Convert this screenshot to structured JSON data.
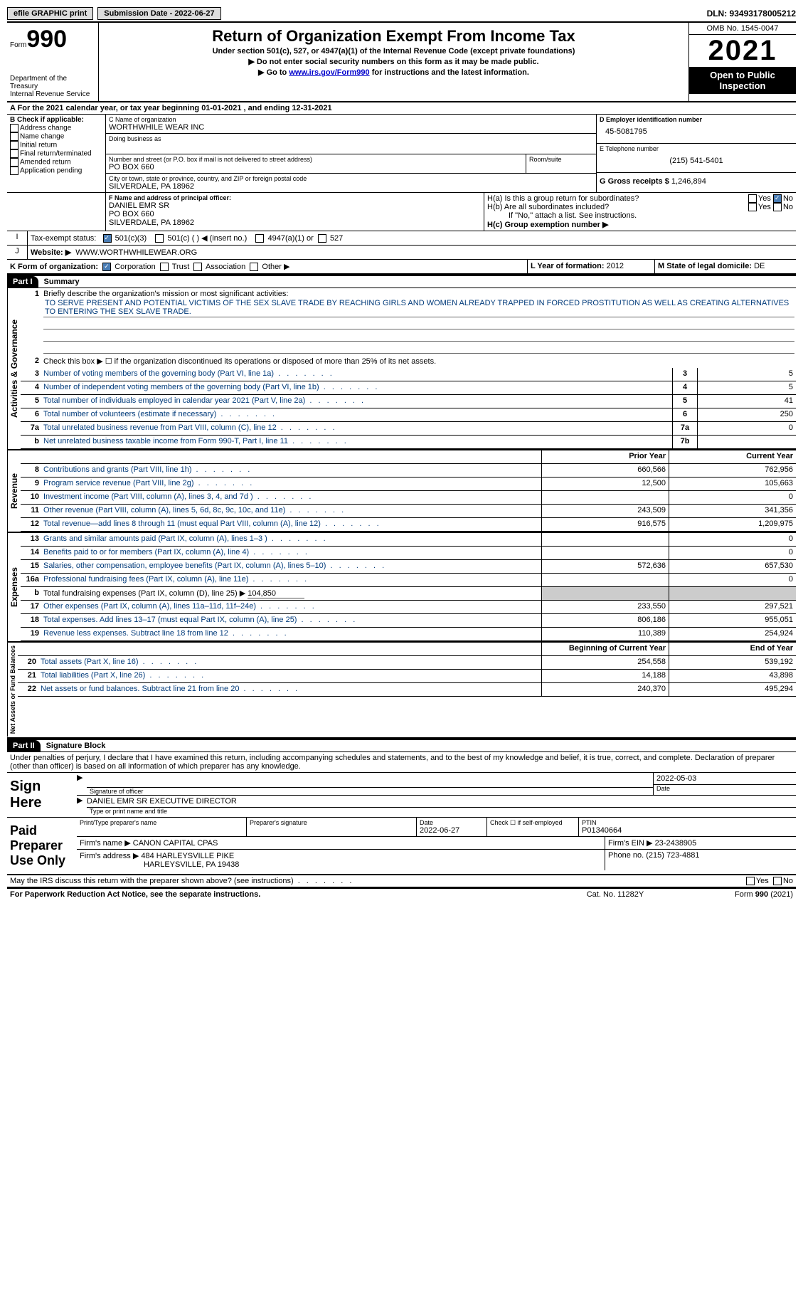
{
  "topbar": {
    "efile_label": "efile GRAPHIC print",
    "submission_label": "Submission Date - 2022-06-27",
    "dln_label": "DLN: 93493178005212"
  },
  "header": {
    "form_label": "Form",
    "form_number": "990",
    "dept": "Department of the Treasury",
    "irs": "Internal Revenue Service",
    "title": "Return of Organization Exempt From Income Tax",
    "subtitle": "Under section 501(c), 527, or 4947(a)(1) of the Internal Revenue Code (except private foundations)",
    "line1": "▶ Do not enter social security numbers on this form as it may be made public.",
    "line2_pre": "▶ Go to ",
    "line2_link": "www.irs.gov/Form990",
    "line2_post": " for instructions and the latest information.",
    "omb": "OMB No. 1545-0047",
    "year": "2021",
    "open": "Open to Public Inspection"
  },
  "a_line": "A For the 2021 calendar year, or tax year beginning 01-01-2021   , and ending 12-31-2021",
  "box_b": {
    "label": "B Check if applicable:",
    "items": [
      "Address change",
      "Name change",
      "Initial return",
      "Final return/terminated",
      "Amended return",
      "Application pending"
    ]
  },
  "box_c": {
    "name_label": "C Name of organization",
    "name": "WORTHWHILE WEAR INC",
    "dba_label": "Doing business as",
    "street_label": "Number and street (or P.O. box if mail is not delivered to street address)",
    "room_label": "Room/suite",
    "street": "PO BOX 660",
    "city_label": "City or town, state or province, country, and ZIP or foreign postal code",
    "city": "SILVERDALE, PA  18962"
  },
  "box_d": {
    "ein_label": "D Employer identification number",
    "ein": "45-5081795",
    "phone_label": "E Telephone number",
    "phone": "(215) 541-5401",
    "gross_label": "G Gross receipts $",
    "gross": "1,246,894"
  },
  "box_f": {
    "label": "F Name and address of principal officer:",
    "name": "DANIEL EMR SR",
    "street": "PO BOX 660",
    "city": "SILVERDALE, PA  18962"
  },
  "box_h": {
    "ha_label": "H(a)  Is this a group return for subordinates?",
    "hb_label": "H(b)  Are all subordinates included?",
    "h_note": "If \"No,\" attach a list. See instructions.",
    "hc_label": "H(c)  Group exemption number ▶",
    "yes": "Yes",
    "no": "No"
  },
  "line_i": {
    "label": "Tax-exempt status:",
    "opts": [
      "501(c)(3)",
      "501(c) (  ) ◀ (insert no.)",
      "4947(a)(1) or",
      "527"
    ]
  },
  "line_j": {
    "label": "Website: ▶",
    "value": "WWW.WORTHWHILEWEAR.ORG"
  },
  "line_k": {
    "label": "K Form of organization:",
    "opts": [
      "Corporation",
      "Trust",
      "Association",
      "Other ▶"
    ]
  },
  "line_l": {
    "label": "L Year of formation:",
    "value": "2012"
  },
  "line_m": {
    "label": "M State of legal domicile:",
    "value": "DE"
  },
  "parts": {
    "p1": "Part I",
    "p1_title": "Summary",
    "p2": "Part II",
    "p2_title": "Signature Block"
  },
  "sections": {
    "act": "Activities & Governance",
    "rev": "Revenue",
    "exp": "Expenses",
    "net": "Net Assets or Fund Balances"
  },
  "summary": {
    "l1_label": "Briefly describe the organization's mission or most significant activities:",
    "l1_text": "TO SERVE PRESENT AND POTENTIAL VICTIMS OF THE SEX SLAVE TRADE BY REACHING GIRLS AND WOMEN ALREADY TRAPPED IN FORCED PROSTITUTION AS WELL AS CREATING ALTERNATIVES TO ENTERING THE SEX SLAVE TRADE.",
    "l2": "Check this box ▶ ☐ if the organization discontinued its operations or disposed of more than 25% of its net assets.",
    "lines_single": [
      {
        "n": "3",
        "t": "Number of voting members of the governing body (Part VI, line 1a)",
        "box": "3",
        "v": "5"
      },
      {
        "n": "4",
        "t": "Number of independent voting members of the governing body (Part VI, line 1b)",
        "box": "4",
        "v": "5"
      },
      {
        "n": "5",
        "t": "Total number of individuals employed in calendar year 2021 (Part V, line 2a)",
        "box": "5",
        "v": "41"
      },
      {
        "n": "6",
        "t": "Total number of volunteers (estimate if necessary)",
        "box": "6",
        "v": "250"
      },
      {
        "n": "7a",
        "t": "Total unrelated business revenue from Part VIII, column (C), line 12",
        "box": "7a",
        "v": "0"
      },
      {
        "n": "b",
        "t": "Net unrelated business taxable income from Form 990-T, Part I, line 11",
        "box": "7b",
        "v": ""
      }
    ],
    "col_prior": "Prior Year",
    "col_current": "Current Year",
    "rev_lines": [
      {
        "n": "8",
        "t": "Contributions and grants (Part VIII, line 1h)",
        "pv": "660,566",
        "cv": "762,956"
      },
      {
        "n": "9",
        "t": "Program service revenue (Part VIII, line 2g)",
        "pv": "12,500",
        "cv": "105,663"
      },
      {
        "n": "10",
        "t": "Investment income (Part VIII, column (A), lines 3, 4, and 7d )",
        "pv": "",
        "cv": "0"
      },
      {
        "n": "11",
        "t": "Other revenue (Part VIII, column (A), lines 5, 6d, 8c, 9c, 10c, and 11e)",
        "pv": "243,509",
        "cv": "341,356"
      },
      {
        "n": "12",
        "t": "Total revenue—add lines 8 through 11 (must equal Part VIII, column (A), line 12)",
        "pv": "916,575",
        "cv": "1,209,975"
      }
    ],
    "exp_lines": [
      {
        "n": "13",
        "t": "Grants and similar amounts paid (Part IX, column (A), lines 1–3 )",
        "pv": "",
        "cv": "0"
      },
      {
        "n": "14",
        "t": "Benefits paid to or for members (Part IX, column (A), line 4)",
        "pv": "",
        "cv": "0"
      },
      {
        "n": "15",
        "t": "Salaries, other compensation, employee benefits (Part IX, column (A), lines 5–10)",
        "pv": "572,636",
        "cv": "657,530"
      },
      {
        "n": "16a",
        "t": "Professional fundraising fees (Part IX, column (A), line 11e)",
        "pv": "",
        "cv": "0"
      }
    ],
    "l16b_pre": "Total fundraising expenses (Part IX, column (D), line 25) ▶",
    "l16b_val": "104,850",
    "exp_lines2": [
      {
        "n": "17",
        "t": "Other expenses (Part IX, column (A), lines 11a–11d, 11f–24e)",
        "pv": "233,550",
        "cv": "297,521"
      },
      {
        "n": "18",
        "t": "Total expenses. Add lines 13–17 (must equal Part IX, column (A), line 25)",
        "pv": "806,186",
        "cv": "955,051"
      },
      {
        "n": "19",
        "t": "Revenue less expenses. Subtract line 18 from line 12",
        "pv": "110,389",
        "cv": "254,924"
      }
    ],
    "col_begin": "Beginning of Current Year",
    "col_end": "End of Year",
    "net_lines": [
      {
        "n": "20",
        "t": "Total assets (Part X, line 16)",
        "pv": "254,558",
        "cv": "539,192"
      },
      {
        "n": "21",
        "t": "Total liabilities (Part X, line 26)",
        "pv": "14,188",
        "cv": "43,898"
      },
      {
        "n": "22",
        "t": "Net assets or fund balances. Subtract line 21 from line 20",
        "pv": "240,370",
        "cv": "495,294"
      }
    ]
  },
  "sig": {
    "declaration": "Under penalties of perjury, I declare that I have examined this return, including accompanying schedules and statements, and to the best of my knowledge and belief, it is true, correct, and complete. Declaration of preparer (other than officer) is based on all information of which preparer has any knowledge.",
    "sign_here": "Sign Here",
    "sig_officer_cap": "Signature of officer",
    "date_cap": "Date",
    "date_val": "2022-05-03",
    "name_title": "DANIEL EMR SR  EXECUTIVE DIRECTOR",
    "name_title_cap": "Type or print name and title",
    "paid": "Paid Preparer Use Only",
    "prep_name_label": "Print/Type preparer's name",
    "prep_sig_label": "Preparer's signature",
    "prep_date_label": "Date",
    "prep_date": "2022-06-27",
    "check_self": "Check ☐ if self-employed",
    "ptin_label": "PTIN",
    "ptin": "P01340664",
    "firm_name_label": "Firm's name    ▶",
    "firm_name": "CANON CAPITAL CPAS",
    "firm_ein_label": "Firm's EIN ▶",
    "firm_ein": "23-2438905",
    "firm_addr_label": "Firm's address ▶",
    "firm_addr1": "484 HARLEYSVILLE PIKE",
    "firm_addr2": "HARLEYSVILLE, PA  19438",
    "firm_phone_label": "Phone no.",
    "firm_phone": "(215) 723-4881",
    "may_irs": "May the IRS discuss this return with the preparer shown above? (see instructions)"
  },
  "footer": {
    "paperwork": "For Paperwork Reduction Act Notice, see the separate instructions.",
    "cat": "Cat. No. 11282Y",
    "form": "Form 990 (2021)"
  }
}
